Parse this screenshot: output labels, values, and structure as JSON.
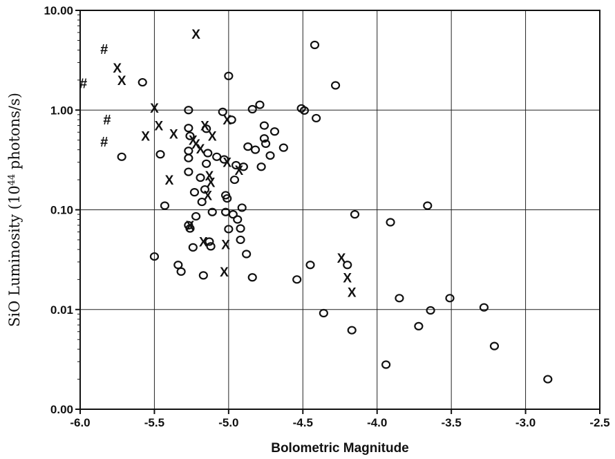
{
  "chart_data": {
    "type": "scatter",
    "title": "",
    "xlabel": "Bolometric Magnitude",
    "ylabel": "SiO Luminosity (10^44 photons/s)",
    "ylabel_parts": {
      "base": "SiO Luminosity (10",
      "sup": "44",
      "tail": " photons/s)"
    },
    "xlim": [
      -6.0,
      -2.5
    ],
    "ylim_log": [
      0.001,
      10.0
    ],
    "y_scale": "log",
    "grid": true,
    "x_ticks": [
      -6.0,
      -5.5,
      -5.0,
      -4.5,
      -4.0,
      -3.5,
      -3.0,
      -2.5
    ],
    "x_tick_labels": [
      "-6.0",
      "-5.5",
      "-5.0",
      "-4.5",
      "-4.0",
      "-3.5",
      "-3.0",
      "-2.5"
    ],
    "y_ticks": [
      0.001,
      0.01,
      0.1,
      1.0,
      10.0
    ],
    "y_tick_labels": [
      "0.00",
      "0.01",
      "0.10",
      "1.00",
      "10.00"
    ],
    "series": [
      {
        "marker": "o",
        "points": [
          [
            -5.58,
            1.9
          ],
          [
            -5.72,
            0.34
          ],
          [
            -5.46,
            0.36
          ],
          [
            -5.43,
            0.11
          ],
          [
            -5.5,
            0.034
          ],
          [
            -5.34,
            0.028
          ],
          [
            -5.32,
            0.024
          ],
          [
            -5.27,
            1.0
          ],
          [
            -5.27,
            0.66
          ],
          [
            -5.26,
            0.55
          ],
          [
            -5.27,
            0.39
          ],
          [
            -5.27,
            0.33
          ],
          [
            -5.27,
            0.24
          ],
          [
            -5.27,
            0.07
          ],
          [
            -5.26,
            0.065
          ],
          [
            -5.24,
            0.042
          ],
          [
            -5.23,
            0.15
          ],
          [
            -5.22,
            0.086
          ],
          [
            -5.19,
            0.21
          ],
          [
            -5.18,
            0.12
          ],
          [
            -5.17,
            0.022
          ],
          [
            -5.16,
            0.16
          ],
          [
            -5.15,
            0.65
          ],
          [
            -5.15,
            0.29
          ],
          [
            -5.14,
            0.37
          ],
          [
            -5.13,
            0.048
          ],
          [
            -5.12,
            0.043
          ],
          [
            -5.11,
            0.095
          ],
          [
            -5.08,
            0.34
          ],
          [
            -5.04,
            0.96
          ],
          [
            -5.03,
            0.32
          ],
          [
            -5.02,
            0.14
          ],
          [
            -5.01,
            0.13
          ],
          [
            -5.02,
            0.095
          ],
          [
            -5.0,
            0.064
          ],
          [
            -5.0,
            2.2
          ],
          [
            -4.98,
            0.8
          ],
          [
            -4.97,
            0.09
          ],
          [
            -4.96,
            0.2
          ],
          [
            -4.95,
            0.28
          ],
          [
            -4.94,
            0.08
          ],
          [
            -4.92,
            0.065
          ],
          [
            -4.92,
            0.05
          ],
          [
            -4.91,
            0.105
          ],
          [
            -4.9,
            0.27
          ],
          [
            -4.88,
            0.036
          ],
          [
            -4.87,
            0.43
          ],
          [
            -4.84,
            1.02
          ],
          [
            -4.84,
            0.021
          ],
          [
            -4.82,
            0.4
          ],
          [
            -4.79,
            1.13
          ],
          [
            -4.78,
            0.27
          ],
          [
            -4.76,
            0.7
          ],
          [
            -4.76,
            0.52
          ],
          [
            -4.75,
            0.46
          ],
          [
            -4.72,
            0.35
          ],
          [
            -4.69,
            0.61
          ],
          [
            -4.63,
            0.42
          ],
          [
            -4.54,
            0.02
          ],
          [
            -4.51,
            1.04
          ],
          [
            -4.49,
            0.99
          ],
          [
            -4.45,
            0.028
          ],
          [
            -4.42,
            4.5
          ],
          [
            -4.41,
            0.83
          ],
          [
            -4.36,
            0.0092
          ],
          [
            -4.28,
            1.77
          ],
          [
            -4.2,
            0.028
          ],
          [
            -4.17,
            0.0062
          ],
          [
            -4.15,
            0.09
          ],
          [
            -3.94,
            0.0028
          ],
          [
            -3.91,
            0.075
          ],
          [
            -3.85,
            0.013
          ],
          [
            -3.72,
            0.0068
          ],
          [
            -3.66,
            0.11
          ],
          [
            -3.64,
            0.0098
          ],
          [
            -3.51,
            0.013
          ],
          [
            -3.28,
            0.0105
          ],
          [
            -3.21,
            0.0043
          ],
          [
            -2.85,
            0.002
          ]
        ]
      },
      {
        "marker": "X",
        "points": [
          [
            -5.22,
            5.8
          ],
          [
            -5.75,
            2.65
          ],
          [
            -5.72,
            2.0
          ],
          [
            -5.5,
            1.05
          ],
          [
            -5.56,
            0.55
          ],
          [
            -5.47,
            0.7
          ],
          [
            -5.37,
            0.58
          ],
          [
            -5.24,
            0.5
          ],
          [
            -5.22,
            0.46
          ],
          [
            -5.19,
            0.41
          ],
          [
            -5.16,
            0.7
          ],
          [
            -5.11,
            0.55
          ],
          [
            -5.13,
            0.22
          ],
          [
            -5.12,
            0.19
          ],
          [
            -5.14,
            0.14
          ],
          [
            -5.01,
            0.8
          ],
          [
            -5.01,
            0.3
          ],
          [
            -4.93,
            0.25
          ],
          [
            -5.4,
            0.2
          ],
          [
            -5.26,
            0.07
          ],
          [
            -5.17,
            0.048
          ],
          [
            -5.02,
            0.045
          ],
          [
            -5.03,
            0.024
          ],
          [
            -4.24,
            0.033
          ],
          [
            -4.2,
            0.021
          ],
          [
            -4.17,
            0.015
          ]
        ]
      },
      {
        "marker": "#",
        "points": [
          [
            -5.84,
            4.1
          ],
          [
            -5.98,
            1.85
          ],
          [
            -5.82,
            0.8
          ],
          [
            -5.84,
            0.48
          ]
        ]
      }
    ]
  }
}
